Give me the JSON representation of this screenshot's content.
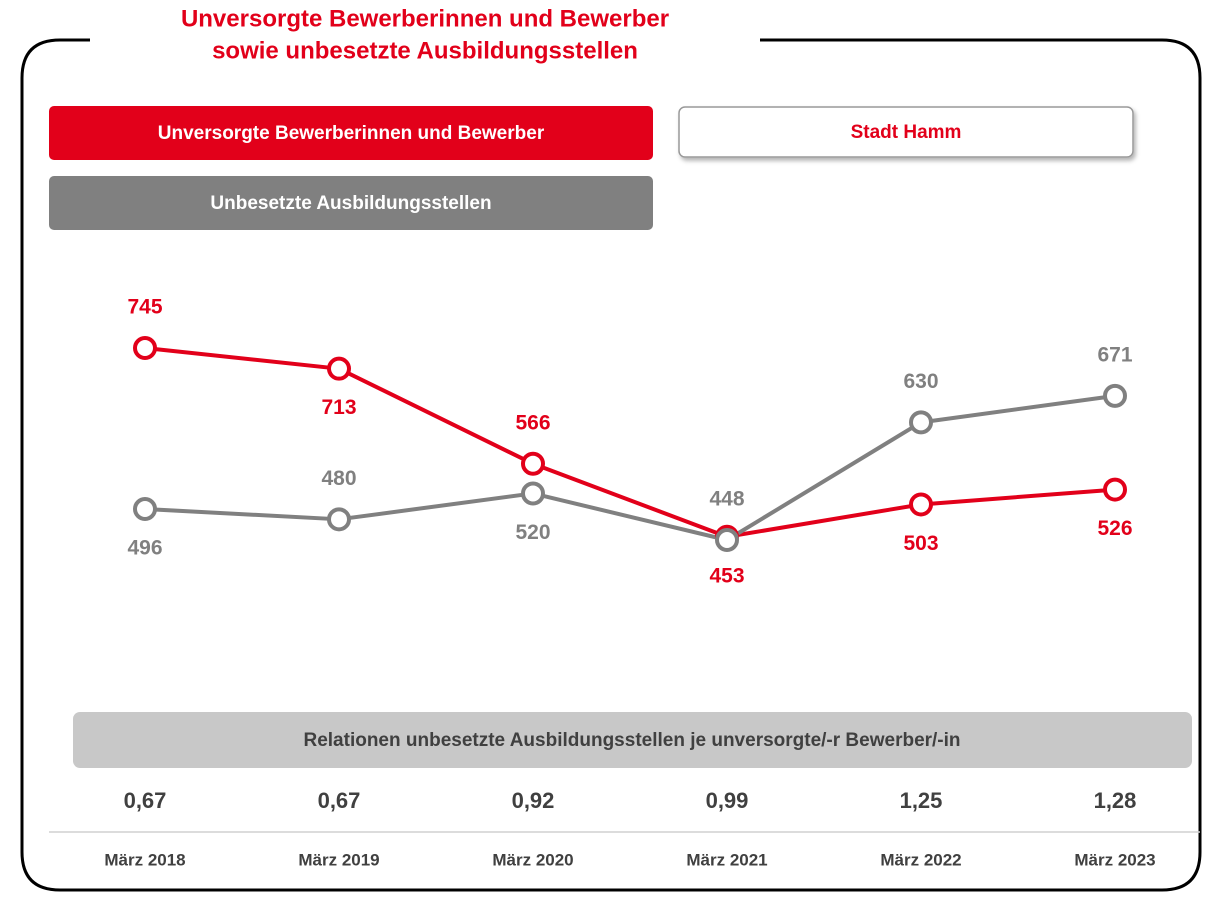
{
  "chart_data": {
    "type": "line",
    "title": [
      "Unversorgte Bewerberinnen und Bewerber",
      "sowie unbesetzte Ausbildungsstellen"
    ],
    "region": "Stadt Hamm",
    "categories": [
      "März 2018",
      "März 2019",
      "März 2020",
      "März 2021",
      "März 2022",
      "März 2023"
    ],
    "series": [
      {
        "name": "Unversorgte Bewerberinnen und Bewerber",
        "color": "#e2001a",
        "values": [
          745,
          713,
          566,
          453,
          503,
          526
        ]
      },
      {
        "name": "Unbesetzte Ausbildungsstellen",
        "color": "#808080",
        "values": [
          496,
          480,
          520,
          448,
          630,
          671
        ]
      }
    ],
    "ratios": {
      "title": "Relationen unbesetzte Ausbildungsstellen je unversorgte/-r Bewerber/-in",
      "values": [
        0.67,
        0.67,
        0.92,
        0.99,
        1.25,
        1.28
      ],
      "value_labels": [
        "0,67",
        "0,67",
        "0,92",
        "0,99",
        "1,25",
        "1,28"
      ]
    }
  }
}
